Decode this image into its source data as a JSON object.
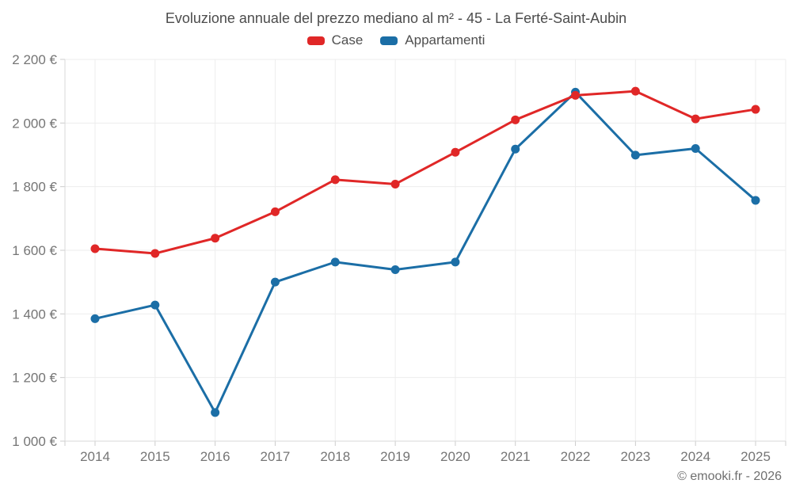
{
  "header": {
    "title": "Evoluzione annuale del prezzo mediano al m² - 45 - La Ferté-Saint-Aubin"
  },
  "legend": {
    "items": [
      {
        "label": "Case",
        "color": "#e02727"
      },
      {
        "label": "Appartamenti",
        "color": "#1b6ea6"
      }
    ]
  },
  "chart_data": {
    "type": "line",
    "title": "Evoluzione annuale del prezzo mediano al m² - 45 - La Ferté-Saint-Aubin",
    "x": [
      2014,
      2015,
      2016,
      2017,
      2018,
      2019,
      2020,
      2021,
      2022,
      2023,
      2024,
      2025
    ],
    "series": [
      {
        "name": "Case",
        "color": "#e02727",
        "values": [
          1605,
          1590,
          1638,
          1721,
          1822,
          1808,
          1908,
          2010,
          2087,
          2100,
          2013,
          2043
        ]
      },
      {
        "name": "Appartamenti",
        "color": "#1b6ea6",
        "values": [
          1385,
          1428,
          1090,
          1500,
          1563,
          1539,
          1563,
          1918,
          2097,
          1899,
          1920,
          1757
        ]
      }
    ],
    "ylim": [
      1000,
      2200
    ],
    "ytick_step": 200,
    "ytick_labels": [
      "1 000 €",
      "1 200 €",
      "1 400 €",
      "1 600 €",
      "1 800 €",
      "2 000 €",
      "2 200 €"
    ],
    "xlabel": "",
    "ylabel": "",
    "grid": true,
    "legend_position": "top"
  },
  "footer": {
    "copyright": "© emooki.fr - 2026"
  }
}
